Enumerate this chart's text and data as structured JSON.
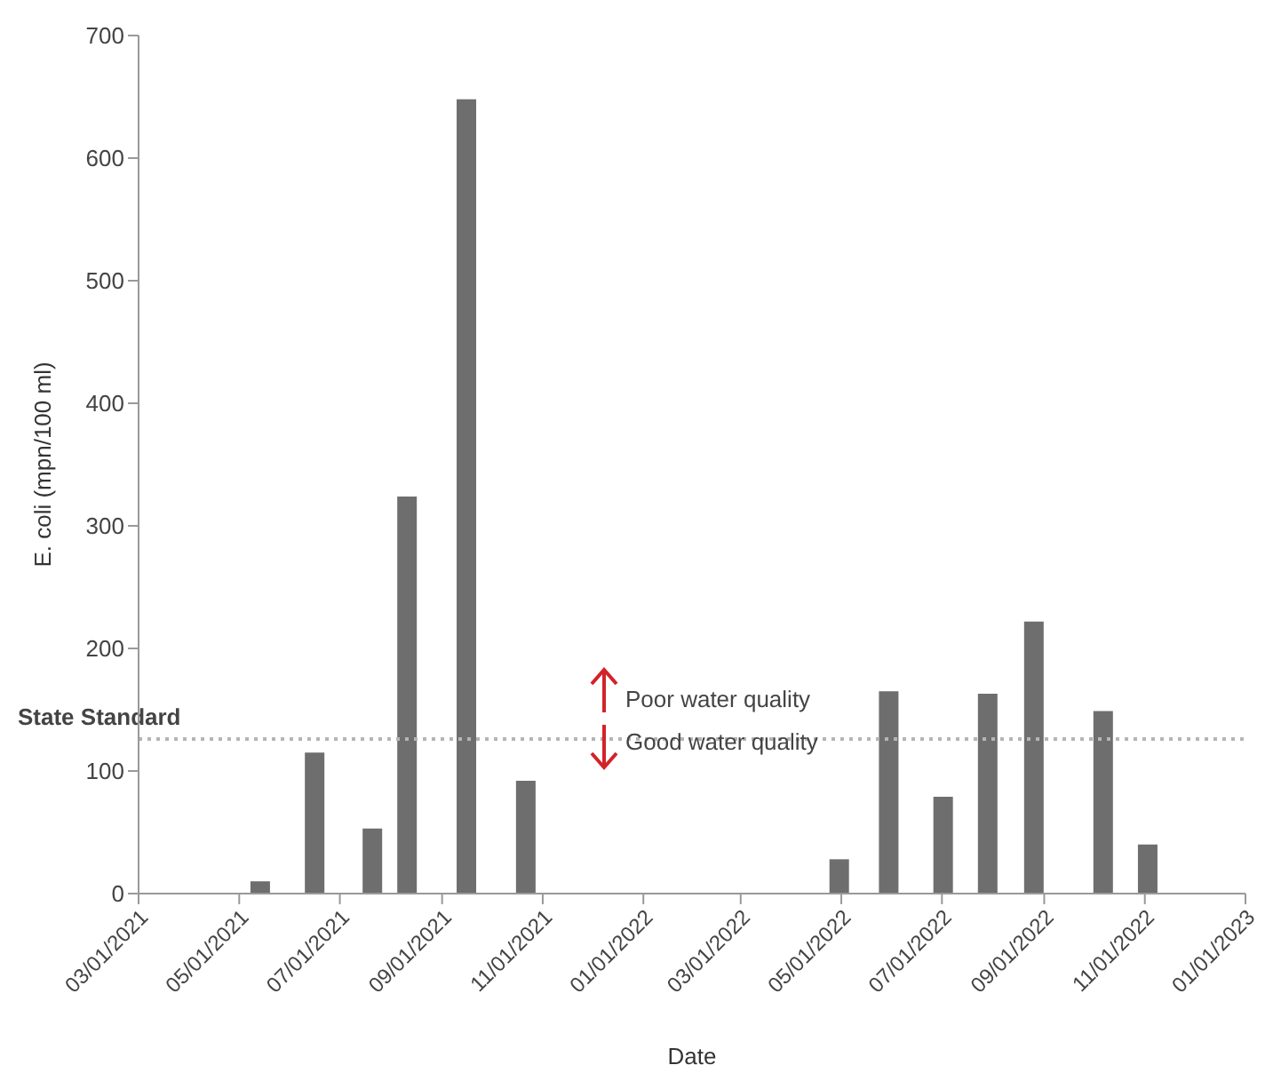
{
  "chart_data": {
    "type": "bar",
    "xlabel": "Date",
    "ylabel": "E. coli (mpn/100 ml)",
    "x": [
      "2021-05-14",
      "2021-06-16",
      "2021-07-21",
      "2021-08-11",
      "2021-09-16",
      "2021-10-22",
      "2022-04-30",
      "2022-05-30",
      "2022-07-02",
      "2022-07-29",
      "2022-08-26",
      "2022-10-07",
      "2022-11-03"
    ],
    "values": [
      10,
      115,
      53,
      324,
      648,
      92,
      28,
      165,
      79,
      163,
      222,
      149,
      40
    ],
    "color": "#6e6e6e",
    "xlim": [
      "2021-03-01",
      "2023-01-01"
    ],
    "xticks": [
      {
        "value": "2021-03-01",
        "label": "03/01/2021"
      },
      {
        "value": "2021-05-01",
        "label": "05/01/2021"
      },
      {
        "value": "2021-07-01",
        "label": "07/01/2021"
      },
      {
        "value": "2021-09-01",
        "label": "09/01/2021"
      },
      {
        "value": "2021-11-01",
        "label": "11/01/2021"
      },
      {
        "value": "2022-01-01",
        "label": "01/01/2022"
      },
      {
        "value": "2022-03-01",
        "label": "03/01/2022"
      },
      {
        "value": "2022-05-01",
        "label": "05/01/2022"
      },
      {
        "value": "2022-07-01",
        "label": "07/01/2022"
      },
      {
        "value": "2022-09-01",
        "label": "09/01/2022"
      },
      {
        "value": "2022-11-01",
        "label": "11/01/2022"
      },
      {
        "value": "2023-01-01",
        "label": "01/01/2023"
      }
    ],
    "ylim": [
      0,
      700
    ],
    "yticks": [
      0,
      100,
      200,
      300,
      400,
      500,
      600,
      700
    ],
    "ref_lines": [
      {
        "axis": "y",
        "value": 126,
        "label": "State Standard",
        "color": "#b5b5b5",
        "line_style": "dotted"
      }
    ],
    "annotations": [
      "Poor water quality",
      "Good water quality"
    ],
    "grid": false
  }
}
